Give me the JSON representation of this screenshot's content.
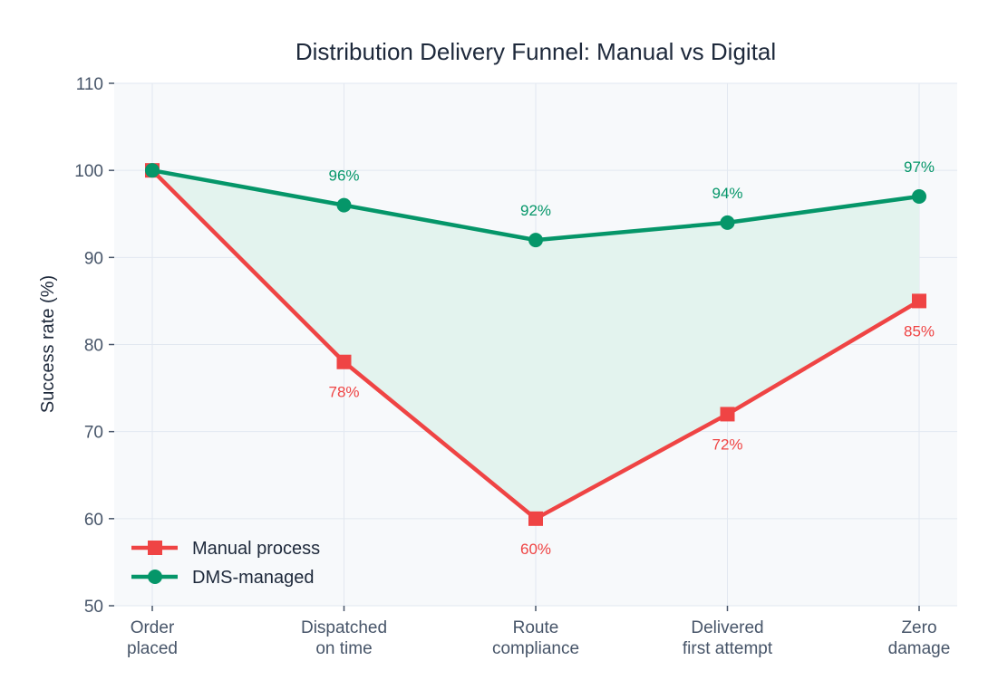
{
  "chart_data": {
    "type": "line",
    "title": "Distribution Delivery Funnel: Manual vs Digital",
    "xlabel": "",
    "ylabel": "Success rate (%)",
    "ylim": [
      50,
      110
    ],
    "yticks": [
      50,
      60,
      70,
      80,
      90,
      100,
      110
    ],
    "categories": [
      [
        "Order",
        "placed"
      ],
      [
        "Dispatched",
        "on time"
      ],
      [
        "Route",
        "compliance"
      ],
      [
        "Delivered",
        "first attempt"
      ],
      [
        "Zero",
        "damage"
      ]
    ],
    "grid": true,
    "legend_position": "bottom-left",
    "fill_between": true,
    "fill_color": "#e3f3ee",
    "background": "#f7f9fb",
    "series": [
      {
        "name": "Manual process",
        "values": [
          100,
          78,
          60,
          72,
          85
        ],
        "color": "#ef4444",
        "marker": "square",
        "labels": [
          null,
          "78%",
          "60%",
          "72%",
          "85%"
        ],
        "label_side": "below"
      },
      {
        "name": "DMS-managed",
        "values": [
          100,
          96,
          92,
          94,
          97
        ],
        "color": "#059669",
        "marker": "circle",
        "labels": [
          null,
          "96%",
          "92%",
          "94%",
          "97%"
        ],
        "label_side": "above"
      }
    ]
  }
}
